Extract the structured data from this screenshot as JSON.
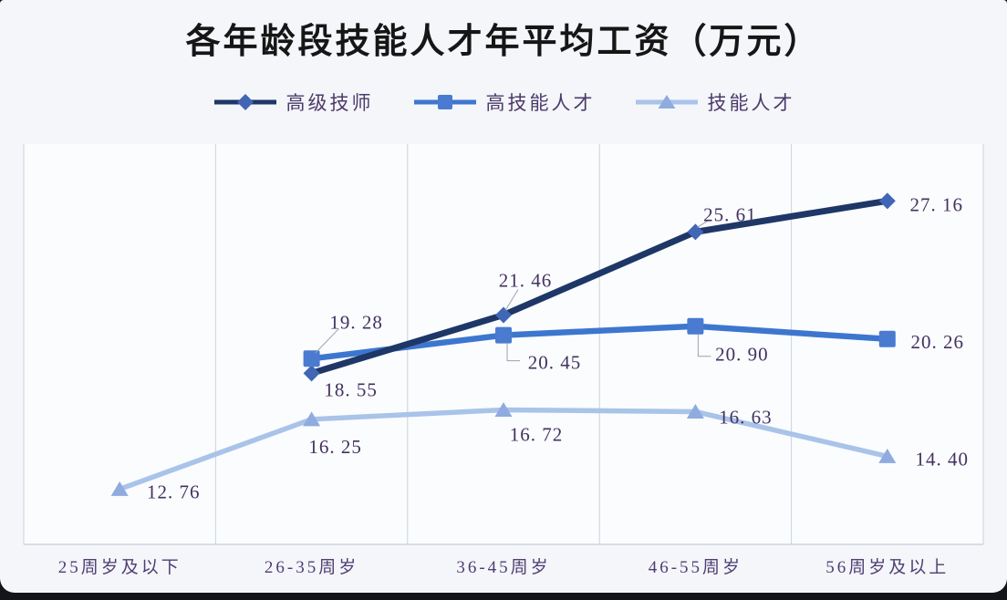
{
  "page": {
    "background": "#f4f6fa",
    "outer_background": "#14151a"
  },
  "chart_data": {
    "type": "line",
    "title": "各年龄段技能人才年平均工资（万元）",
    "categories": [
      "25周岁及以下",
      "26-35周岁",
      "36-45周岁",
      "46-55周岁",
      "56周岁及以上"
    ],
    "series": [
      {
        "name": "高级技师",
        "marker": "diamond",
        "line_color": "#1e3767",
        "marker_color": "#4066b5",
        "values": [
          null,
          18.55,
          21.46,
          25.61,
          27.16
        ]
      },
      {
        "name": "高技能人才",
        "marker": "square",
        "line_color": "#3d76cf",
        "marker_color": "#4a7bd0",
        "values": [
          null,
          19.28,
          20.45,
          20.9,
          20.26
        ]
      },
      {
        "name": "技能人才",
        "marker": "triangle",
        "line_color": "#a9c3e9",
        "marker_color": "#8fabdf",
        "values": [
          12.76,
          16.25,
          16.72,
          16.63,
          14.4
        ]
      }
    ],
    "ylim": [
      10,
      30
    ],
    "grid": "vertical-only",
    "legend_position": "top-center",
    "value_label_format": "two-decimals",
    "value_label_color": "#43315f",
    "axis_label_color": "#4f3d72",
    "grid_color": "#ccd3dd",
    "axis_line_color": "#c5ccd8",
    "leader_line_color": "#9aa3b2",
    "plot_background": "#fafcfe"
  }
}
